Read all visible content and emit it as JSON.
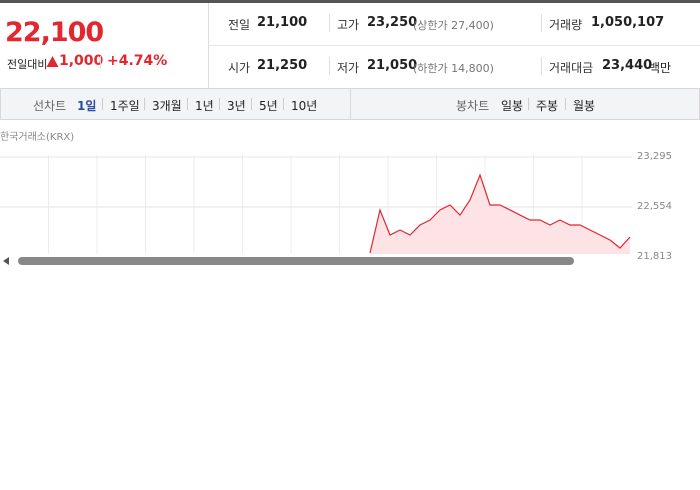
{
  "quote": {
    "price": "22,100",
    "change_label": "전일대비",
    "change": "1,000",
    "change_rate": "+4.74%"
  },
  "stats": [
    [
      {
        "label": "전일",
        "value": "21,100"
      },
      {
        "label": "고가",
        "value": "23,250",
        "note": "(상한가 27,400)"
      },
      {
        "label": "거래량",
        "value": "1,050,107"
      }
    ],
    [
      {
        "label": "시가",
        "value": "21,250"
      },
      {
        "label": "저가",
        "value": "21,050",
        "note": "(하한가 14,800)"
      },
      {
        "label": "거래대금",
        "value": "23,440",
        "unit": "백만"
      }
    ]
  ],
  "tabs": {
    "line_label": "선차트",
    "line_periods": [
      "1일",
      "1주일",
      "3개월",
      "1년",
      "3년",
      "5년",
      "10년"
    ],
    "candle_label": "봉차트",
    "candle_periods": [
      "일봉",
      "주봉",
      "월봉"
    ]
  },
  "chart_data": {
    "type": "line",
    "source": "한국거래소(KRX)",
    "color": "#e3262f",
    "fill": "#fde3e6",
    "values": [
      21872,
      22510,
      22139,
      22213,
      22139,
      22287,
      22361,
      22510,
      22584,
      22435,
      22658,
      23028,
      22584,
      22584,
      22510,
      22435,
      22361,
      22361,
      22287,
      22361,
      22287,
      22287,
      22213,
      22139,
      22065,
      21946,
      22109
    ],
    "ylim": [
      21813,
      23295
    ],
    "yticks": [
      {
        "value": 23295,
        "label": "23,295"
      },
      {
        "value": 22554,
        "label": "22,554"
      },
      {
        "value": 21813,
        "label": "21,813"
      }
    ],
    "grid": true
  }
}
